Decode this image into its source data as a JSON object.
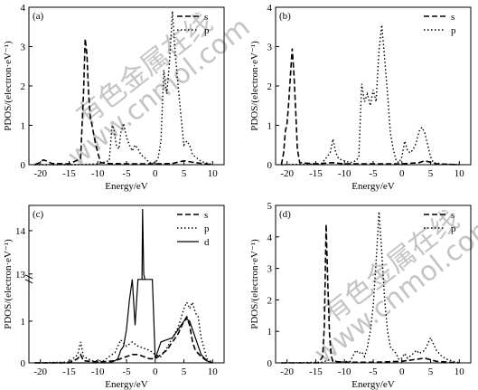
{
  "watermark": {
    "text_cn": "有色金属在线",
    "text_url": "www.cnmol.com",
    "color": "#bcbcbc"
  },
  "chart_data": [
    {
      "type": "line",
      "panel_label": "(a)",
      "xlabel": "Energy/eV",
      "ylabel": "PDOS/(electron·eV⁻¹)",
      "xlim": [
        -22,
        12
      ],
      "ylim": [
        0,
        4
      ],
      "xticks": [
        -20,
        -15,
        -10,
        -5,
        0,
        5,
        10
      ],
      "yticks": [
        0,
        1,
        2,
        3,
        4
      ],
      "grid": false,
      "legend_position": "top-right",
      "series": [
        {
          "name": "s",
          "style": "dashed",
          "points": [
            [
              -21,
              0
            ],
            [
              -20.2,
              0.05
            ],
            [
              -19.5,
              0.12
            ],
            [
              -19,
              0.1
            ],
            [
              -18,
              0.03
            ],
            [
              -15,
              0.02
            ],
            [
              -13,
              0.15
            ],
            [
              -12.5,
              1.8
            ],
            [
              -12.2,
              3.2
            ],
            [
              -11.9,
              2.8
            ],
            [
              -11.6,
              1.8
            ],
            [
              -11.3,
              1.2
            ],
            [
              -11,
              1.0
            ],
            [
              -10.5,
              0.6
            ],
            [
              -10,
              0.3
            ],
            [
              -9.5,
              0.05
            ],
            [
              -8,
              0.03
            ],
            [
              -5,
              0.02
            ],
            [
              0,
              0.02
            ],
            [
              3,
              0.03
            ],
            [
              5,
              0.1
            ],
            [
              7,
              0.05
            ],
            [
              10,
              0
            ]
          ]
        },
        {
          "name": "p",
          "style": "dotted",
          "points": [
            [
              -21,
              0
            ],
            [
              -14,
              0
            ],
            [
              -10,
              0.02
            ],
            [
              -8,
              0.1
            ],
            [
              -7.5,
              1.0
            ],
            [
              -7.2,
              0.9
            ],
            [
              -6.8,
              0.5
            ],
            [
              -6.3,
              0.4
            ],
            [
              -6,
              0.8
            ],
            [
              -5.5,
              1.05
            ],
            [
              -5,
              0.7
            ],
            [
              -4.5,
              0.5
            ],
            [
              -4,
              0.35
            ],
            [
              -3.5,
              0.5
            ],
            [
              -3,
              0.4
            ],
            [
              -2.5,
              0.25
            ],
            [
              -2,
              0.2
            ],
            [
              -1,
              0.05
            ],
            [
              0,
              0.05
            ],
            [
              0.5,
              0.15
            ],
            [
              1,
              0.6
            ],
            [
              1.5,
              2.4
            ],
            [
              2,
              1.8
            ],
            [
              2.5,
              2.6
            ],
            [
              3,
              3.9
            ],
            [
              3.5,
              2.8
            ],
            [
              4,
              2.0
            ],
            [
              4.5,
              1.2
            ],
            [
              5,
              0.5
            ],
            [
              5.5,
              0.6
            ],
            [
              6,
              0.5
            ],
            [
              6.5,
              0.25
            ],
            [
              7,
              0.2
            ],
            [
              8,
              0.08
            ],
            [
              10,
              0
            ]
          ]
        }
      ]
    },
    {
      "type": "line",
      "panel_label": "(b)",
      "xlabel": "Energy/eV",
      "ylabel": "PDOS/(electron·eV⁻¹)",
      "xlim": [
        -22,
        12
      ],
      "ylim": [
        0,
        4
      ],
      "xticks": [
        -20,
        -15,
        -10,
        -5,
        0,
        5,
        10
      ],
      "yticks": [
        0,
        1,
        2,
        3,
        4
      ],
      "grid": false,
      "legend_position": "top-right",
      "series": [
        {
          "name": "s",
          "style": "dashed",
          "points": [
            [
              -21,
              0
            ],
            [
              -20.6,
              0.3
            ],
            [
              -20.3,
              0.85
            ],
            [
              -20,
              1.05
            ],
            [
              -19.7,
              1.6
            ],
            [
              -19.4,
              2.3
            ],
            [
              -19.1,
              2.95
            ],
            [
              -18.8,
              2.3
            ],
            [
              -18.5,
              1.4
            ],
            [
              -18.2,
              0.4
            ],
            [
              -17.8,
              0.05
            ],
            [
              -15,
              0.02
            ],
            [
              -12,
              0.05
            ],
            [
              -10,
              0.02
            ],
            [
              -5,
              0.02
            ],
            [
              0,
              0.02
            ],
            [
              3,
              0.05
            ],
            [
              4,
              0.1
            ],
            [
              6,
              0.02
            ],
            [
              10,
              0
            ]
          ]
        },
        {
          "name": "p",
          "style": "dotted",
          "points": [
            [
              -21,
              0
            ],
            [
              -14,
              0.02
            ],
            [
              -12.5,
              0.3
            ],
            [
              -12,
              0.65
            ],
            [
              -11.5,
              0.3
            ],
            [
              -11,
              0.15
            ],
            [
              -10,
              0.1
            ],
            [
              -9,
              0.05
            ],
            [
              -8,
              0.1
            ],
            [
              -7.5,
              0.2
            ],
            [
              -7,
              2.05
            ],
            [
              -6.5,
              1.6
            ],
            [
              -6,
              1.8
            ],
            [
              -5.5,
              1.5
            ],
            [
              -5,
              1.9
            ],
            [
              -4.5,
              1.6
            ],
            [
              -4,
              2.9
            ],
            [
              -3.5,
              3.55
            ],
            [
              -3,
              2.7
            ],
            [
              -2.5,
              1.8
            ],
            [
              -2,
              0.8
            ],
            [
              -1.5,
              0.4
            ],
            [
              -1,
              0.1
            ],
            [
              -0.5,
              0.05
            ],
            [
              0,
              0.2
            ],
            [
              0.5,
              0.6
            ],
            [
              1,
              0.35
            ],
            [
              1.5,
              0.3
            ],
            [
              2,
              0.4
            ],
            [
              2.5,
              0.55
            ],
            [
              3,
              0.85
            ],
            [
              3.5,
              0.95
            ],
            [
              4,
              0.8
            ],
            [
              4.5,
              0.5
            ],
            [
              5,
              0.2
            ],
            [
              5.5,
              0.05
            ],
            [
              7,
              0.02
            ],
            [
              10,
              0
            ]
          ]
        }
      ]
    },
    {
      "type": "line",
      "panel_label": "(c)",
      "xlabel": "Energy/eV",
      "ylabel": "PDOS/(electron·eV⁻¹)",
      "xlim": [
        -22,
        12
      ],
      "ylim": [
        0,
        2
      ],
      "y_axis_break": {
        "lower_range": [
          0,
          2
        ],
        "upper_range": [
          13,
          14.5
        ]
      },
      "xticks": [
        -20,
        -15,
        -10,
        -5,
        0,
        5,
        10
      ],
      "yticks": [
        0,
        1,
        13,
        14
      ],
      "grid": false,
      "legend_position": "top-right",
      "series": [
        {
          "name": "s",
          "style": "dashed",
          "points": [
            [
              -21,
              0
            ],
            [
              -15,
              0
            ],
            [
              -13.5,
              0.1
            ],
            [
              -13,
              0.2
            ],
            [
              -12.5,
              0.05
            ],
            [
              -10,
              0.02
            ],
            [
              -7,
              0.05
            ],
            [
              -6,
              0.1
            ],
            [
              -5,
              0.15
            ],
            [
              -4,
              0.2
            ],
            [
              -3,
              0.2
            ],
            [
              -2,
              0.15
            ],
            [
              -1,
              0.1
            ],
            [
              0,
              0.1
            ],
            [
              1,
              0.2
            ],
            [
              2,
              0.3
            ],
            [
              3,
              0.5
            ],
            [
              4,
              0.7
            ],
            [
              5,
              1.0
            ],
            [
              5.5,
              1.1
            ],
            [
              6,
              0.9
            ],
            [
              6.5,
              0.5
            ],
            [
              7,
              0.3
            ],
            [
              8,
              0.15
            ],
            [
              9,
              0.05
            ],
            [
              10,
              0
            ]
          ]
        },
        {
          "name": "p",
          "style": "dotted",
          "points": [
            [
              -21,
              0
            ],
            [
              -15,
              0.02
            ],
            [
              -13.5,
              0.2
            ],
            [
              -13,
              0.5
            ],
            [
              -12.5,
              0.15
            ],
            [
              -11,
              0.05
            ],
            [
              -9,
              0.05
            ],
            [
              -7,
              0.25
            ],
            [
              -6,
              0.55
            ],
            [
              -5,
              0.4
            ],
            [
              -4,
              0.5
            ],
            [
              -3,
              0.4
            ],
            [
              -2,
              0.35
            ],
            [
              -1,
              0.3
            ],
            [
              0,
              0.2
            ],
            [
              1,
              0.15
            ],
            [
              2,
              0.35
            ],
            [
              3,
              0.6
            ],
            [
              4,
              0.85
            ],
            [
              5,
              1.3
            ],
            [
              5.5,
              1.45
            ],
            [
              6,
              1.3
            ],
            [
              6.5,
              1.45
            ],
            [
              7,
              1.2
            ],
            [
              7.5,
              1.1
            ],
            [
              8,
              0.6
            ],
            [
              8.5,
              0.35
            ],
            [
              9,
              0.1
            ],
            [
              10,
              0
            ]
          ]
        },
        {
          "name": "d",
          "style": "solid",
          "points": [
            [
              -21,
              0
            ],
            [
              -8,
              0
            ],
            [
              -7,
              0.05
            ],
            [
              -6.5,
              0.1
            ],
            [
              -6,
              0.3
            ],
            [
              -5.5,
              0.4
            ],
            [
              -5,
              0.8
            ],
            [
              -4.5,
              1.5
            ],
            [
              -4,
              2.0
            ],
            [
              -3.5,
              0.9
            ],
            [
              -3,
              2.0
            ],
            [
              -2.5,
              2.0
            ],
            [
              -2,
              2.0
            ],
            [
              -1.5,
              2.0
            ],
            [
              -1,
              2.0
            ],
            [
              -0.5,
              2.0
            ],
            [
              0,
              0.1
            ],
            [
              0.5,
              0.3
            ],
            [
              1,
              0.5
            ],
            [
              2,
              0.55
            ],
            [
              3,
              0.6
            ],
            [
              4,
              0.8
            ],
            [
              5,
              1.0
            ],
            [
              5.5,
              1.05
            ],
            [
              6,
              1.0
            ],
            [
              7,
              0.6
            ],
            [
              8,
              0.2
            ],
            [
              9,
              0.05
            ],
            [
              10,
              0
            ]
          ]
        }
      ]
    },
    {
      "type": "line",
      "panel_label": "(d)",
      "xlabel": "Energy/eV",
      "ylabel": "PDOS/(electron·eV⁻¹)",
      "xlim": [
        -22,
        12
      ],
      "ylim": [
        0,
        5
      ],
      "xticks": [
        -20,
        -15,
        -10,
        -5,
        0,
        5,
        10
      ],
      "yticks": [
        0,
        1,
        2,
        3,
        4,
        5
      ],
      "grid": false,
      "legend_position": "top-right",
      "series": [
        {
          "name": "s",
          "style": "dashed",
          "points": [
            [
              -21,
              0
            ],
            [
              -14.5,
              0
            ],
            [
              -13.8,
              0.2
            ],
            [
              -13.5,
              1.2
            ],
            [
              -13.2,
              4.4
            ],
            [
              -12.9,
              2.5
            ],
            [
              -12.6,
              0.9
            ],
            [
              -12.3,
              0.2
            ],
            [
              -12,
              0.05
            ],
            [
              -10,
              0.02
            ],
            [
              -5,
              0.02
            ],
            [
              0,
              0.05
            ],
            [
              2,
              0.1
            ],
            [
              4,
              0.15
            ],
            [
              6,
              0.05
            ],
            [
              10,
              0
            ]
          ]
        },
        {
          "name": "p",
          "style": "dotted",
          "points": [
            [
              -21,
              0
            ],
            [
              -14,
              0.02
            ],
            [
              -12.5,
              0.1
            ],
            [
              -11,
              0.03
            ],
            [
              -9,
              0.05
            ],
            [
              -8,
              0.4
            ],
            [
              -7.5,
              0.3
            ],
            [
              -7,
              0.35
            ],
            [
              -6.5,
              0.2
            ],
            [
              -6,
              0.5
            ],
            [
              -5.5,
              1.0
            ],
            [
              -5,
              1.8
            ],
            [
              -4.5,
              3.2
            ],
            [
              -4,
              4.8
            ],
            [
              -3.5,
              3.5
            ],
            [
              -3,
              2.0
            ],
            [
              -2.5,
              1.0
            ],
            [
              -2,
              0.5
            ],
            [
              -1.5,
              0.4
            ],
            [
              -1,
              0.3
            ],
            [
              -0.5,
              0.1
            ],
            [
              0,
              0.15
            ],
            [
              0.5,
              0.3
            ],
            [
              1,
              0.15
            ],
            [
              2,
              0.3
            ],
            [
              2.5,
              0.4
            ],
            [
              3,
              0.3
            ],
            [
              4,
              0.4
            ],
            [
              5,
              0.8
            ],
            [
              5.5,
              0.6
            ],
            [
              6,
              0.4
            ],
            [
              7,
              0.2
            ],
            [
              8,
              0.1
            ],
            [
              9,
              0.05
            ],
            [
              10,
              0
            ]
          ]
        }
      ]
    }
  ]
}
